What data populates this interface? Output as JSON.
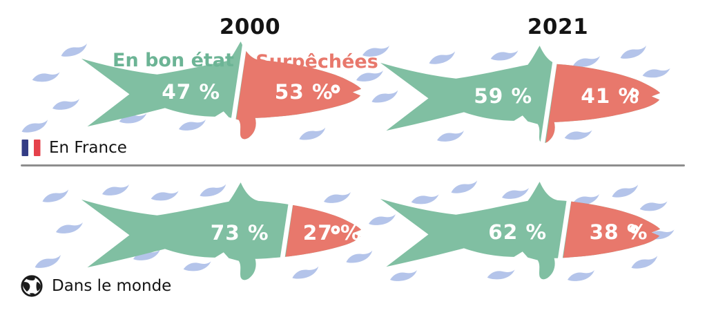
{
  "columns": [
    "2000",
    "2021"
  ],
  "legend": {
    "good": "En bon état",
    "over": "Surpêchées"
  },
  "rows": [
    {
      "label": "En France",
      "icon": "french-flag",
      "cells": [
        {
          "year": "2000",
          "good_pct": "47 %",
          "over_pct": "53 %"
        },
        {
          "year": "2021",
          "good_pct": "59 %",
          "over_pct": "41 %"
        }
      ]
    },
    {
      "label": "Dans le monde",
      "icon": "globe",
      "cells": [
        {
          "year": "2000",
          "good_pct": "73 %",
          "over_pct": "27 %"
        },
        {
          "year": "2021",
          "good_pct": "62 %",
          "over_pct": "38 %"
        }
      ]
    }
  ],
  "colors": {
    "good": "#80bfa2",
    "over": "#e8786c",
    "legend_good": "#6cb495",
    "legend_over": "#e8786c",
    "wave": "#b4c4ea",
    "divider": "#8d8d8d",
    "text": "#141414",
    "flag_blue": "#333c85",
    "flag_red": "#e5414b",
    "eye": "#ffffff"
  },
  "chart_data": {
    "type": "bar",
    "subtype": "pictogram-fish-100-percent-split",
    "unit": "%",
    "categories": [
      "En France 2000",
      "En France 2021",
      "Dans le monde 2000",
      "Dans le monde 2021"
    ],
    "series": [
      {
        "name": "En bon état",
        "values": [
          47,
          59,
          73,
          62
        ]
      },
      {
        "name": "Surpêchées",
        "values": [
          53,
          41,
          27,
          38
        ]
      }
    ],
    "legend_position": "above first fish (green label left of split, red label right of split)",
    "orientation": "each fish is a 100% pictogram: green tail-side = healthy stocks, red head-side = overfished"
  }
}
